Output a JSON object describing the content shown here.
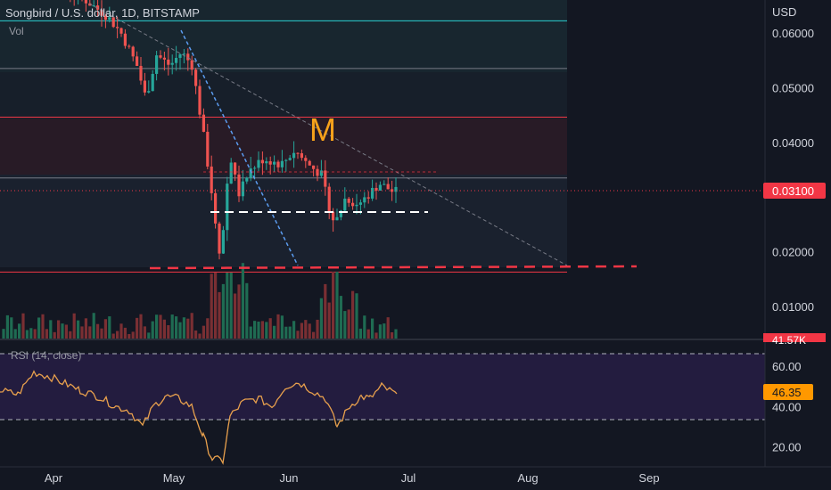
{
  "header": {
    "symbol": "Songbird / U.S. dollar, 1D, BITSTAMP",
    "volume_label": "Vol"
  },
  "price_axis": {
    "currency": "USD",
    "ticks": [
      "0.06000",
      "0.05000",
      "0.04000",
      "0.02000",
      "0.01000"
    ],
    "tick_values": [
      0.06,
      0.05,
      0.04,
      0.02,
      0.01
    ],
    "last_price": "0.03100",
    "last_price_value": 0.031,
    "last_price_color": "#f23645",
    "volume_badge": "41.57K"
  },
  "time_axis": {
    "labels": [
      "Apr",
      "May",
      "Jun",
      "Jul",
      "Aug",
      "Sep"
    ]
  },
  "rsi": {
    "label": "RSI (14, close)",
    "ticks": [
      "60.00",
      "40.00",
      "20.00"
    ],
    "tick_values": [
      60,
      40,
      20
    ],
    "value": "46.35",
    "value_num": 46.35,
    "upper_band": 70,
    "lower_band": 30,
    "line_color": "#e8a04d"
  },
  "annotation": {
    "text": "M",
    "color": "#f7a21b"
  },
  "colors": {
    "background": "#131722",
    "up": "#26a69a",
    "down": "#ef5350",
    "resistance": "#f23645",
    "support_line": "#f23645",
    "cyan_level": "#2ad0d0",
    "trend_blue": "#5b9cf0"
  },
  "chart_data": {
    "type": "candlestick",
    "title": "Songbird / U.S. dollar, 1D, BITSTAMP",
    "x_axis": {
      "labels": [
        "Apr",
        "May",
        "Jun",
        "Jul",
        "Aug",
        "Sep"
      ]
    },
    "y_axis": {
      "unit": "USD",
      "range": [
        0.004,
        0.066
      ]
    },
    "levels": [
      {
        "price": 0.0622,
        "color": "#2ad0d0"
      },
      {
        "price": 0.0535,
        "color": "#787b86"
      },
      {
        "price": 0.0446,
        "color": "#f23645"
      },
      {
        "price": 0.0335,
        "color": "#787b86"
      },
      {
        "price": 0.0163,
        "color": "#f23645"
      },
      {
        "price": 0.0268,
        "color": "#ffffff"
      }
    ],
    "rsi": {
      "range": [
        10,
        72
      ],
      "bands": [
        70,
        30
      ],
      "last": 46.35
    }
  }
}
